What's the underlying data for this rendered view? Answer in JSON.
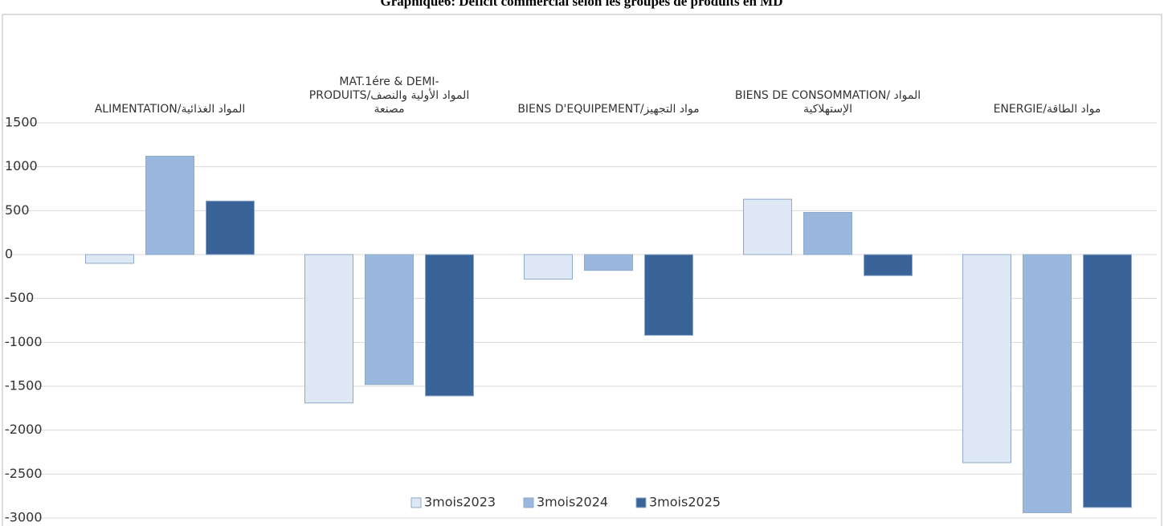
{
  "chart_data": {
    "type": "bar",
    "title": "Graphique6: Déficit commercial selon les groupes de produits en MD",
    "categories": [
      "ALIMENTATION/المواد الغذائية",
      "MAT.1ére & DEMI-\nPRODUITS/المواد الأولية والنصف\nمصنعة",
      "BIENS D'EQUIPEMENT/مواد التجهيز",
      "BIENS DE CONSOMMATION/ المواد\nالإستهلاكية",
      "ENERGIE/مواد الطاقة"
    ],
    "series": [
      {
        "name": "3mois2023",
        "color": "#dde8f4",
        "values": [
          -100,
          -1690,
          -280,
          630,
          -2370
        ]
      },
      {
        "name": "3mois2024",
        "color": "#9ab8dd",
        "values": [
          1120,
          -1480,
          -180,
          480,
          -2940
        ]
      },
      {
        "name": "3mois2025",
        "color": "#3a6399",
        "values": [
          610,
          -1610,
          -920,
          -240,
          -2880
        ]
      }
    ],
    "ylim": [
      -3000,
      1500
    ],
    "yticks": [
      -3000,
      -2500,
      -2000,
      -1500,
      -1000,
      -500,
      0,
      500,
      1000,
      1500
    ],
    "grid": true,
    "legend": "bottom"
  }
}
